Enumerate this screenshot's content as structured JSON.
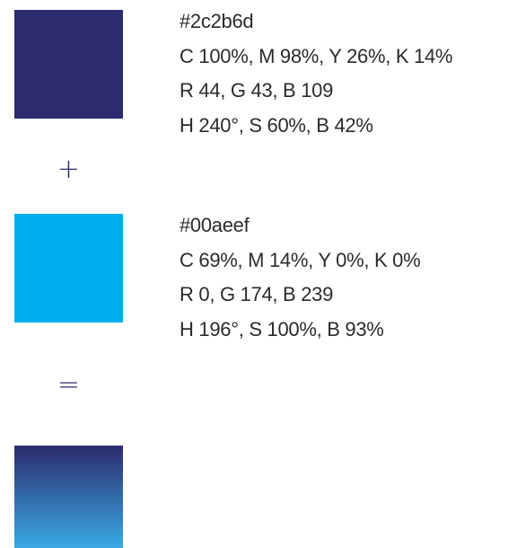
{
  "colors": {
    "color_a": "#2c2b6d",
    "color_b": "#00aeef",
    "mix_top": "#2c2b6d",
    "mix_bottom": "#3aa9e3",
    "operator_color": "#2c2b6d",
    "text_color": "#2b2b2b"
  },
  "operators": {
    "plus": "+",
    "equals": "="
  },
  "color_a_info": {
    "hex": "#2c2b6d",
    "cmyk": "C 100%, M 98%, Y 26%, K 14%",
    "rgb": "R 44, G 43, B 109",
    "hsb": "H 240°, S 60%, B 42%"
  },
  "color_b_info": {
    "hex": "#00aeef",
    "cmyk": "C 69%, M 14%, Y 0%, K 0%",
    "rgb": "R 0, G 174, B 239",
    "hsb": "H 196°, S 100%, B 93%"
  }
}
